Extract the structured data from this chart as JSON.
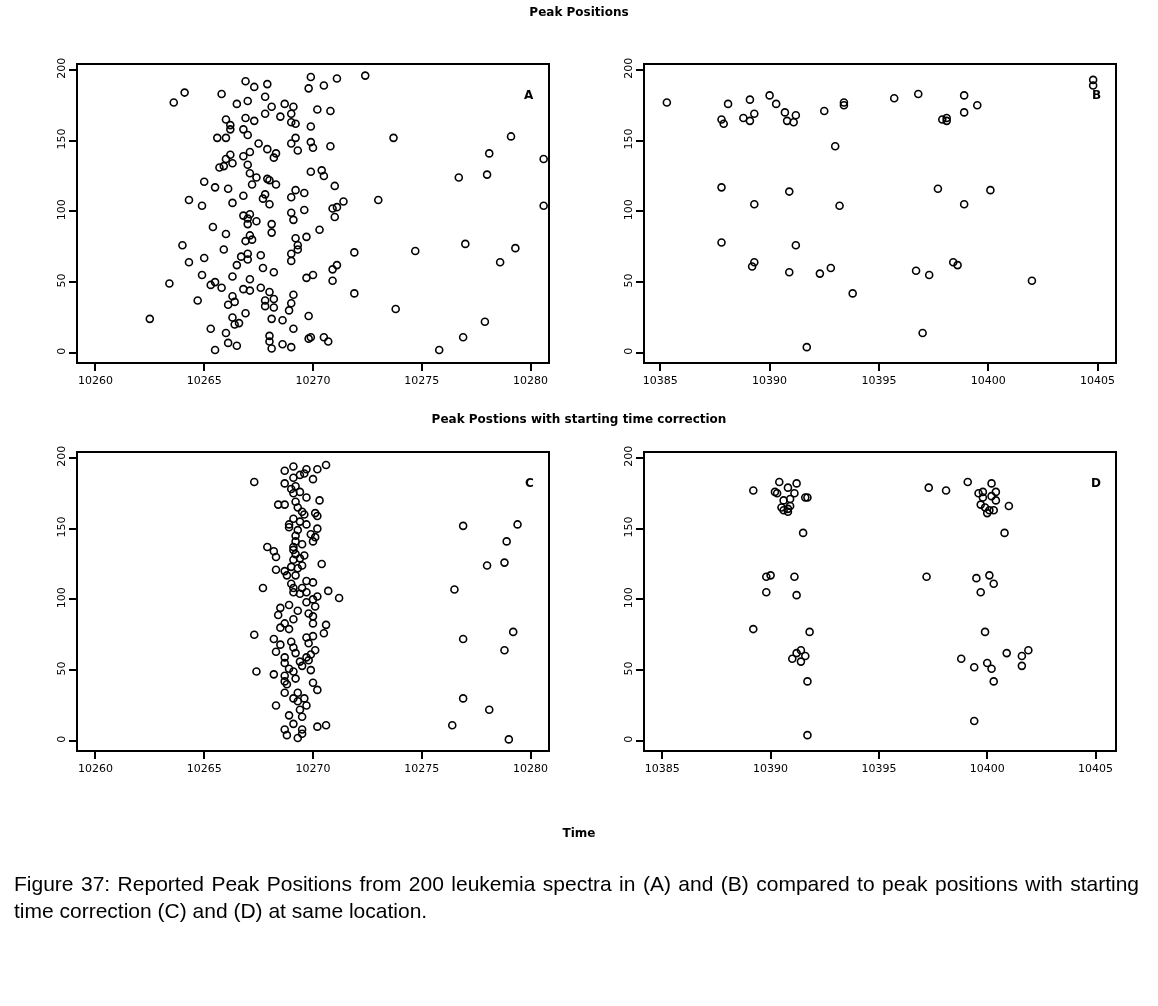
{
  "chart_data": [
    {
      "type": "scatter",
      "title": "Peak Positions",
      "annotations": [
        "A"
      ],
      "marker": "circle",
      "xlim": [
        10259.2,
        10280.8
      ],
      "ylim": [
        -6.5,
        203.5
      ],
      "xticks": [
        10260,
        10265,
        10270,
        10275,
        10280
      ],
      "yticks": [
        0,
        50,
        100,
        150,
        200
      ],
      "series": [
        {
          "color": "#000000",
          "x": [
            10263.6,
            10264.1,
            10265.8,
            10266.9,
            10267.3,
            10267.9,
            10267.8,
            10267.0,
            10266.5,
            10268.1,
            10268.7,
            10269.1,
            10269.0,
            10267.8,
            10268.5,
            10269.9,
            10269.8,
            10270.5,
            10271.1,
            10272.4,
            10270.2,
            10270.8,
            10266.0,
            10266.2,
            10266.9,
            10267.3,
            10269.0,
            10269.2,
            10269.9,
            10266.8,
            10267.0,
            10266.2,
            10265.6,
            10266.0,
            10269.2,
            10269.0,
            10269.3,
            10269.9,
            10270.0,
            10270.8,
            10267.5,
            10267.9,
            10268.3,
            10268.2,
            10267.1,
            10266.8,
            10266.2,
            10266.0,
            10266.3,
            10265.9,
            10265.7,
            10267.0,
            10267.1,
            10267.4,
            10267.2,
            10267.9,
            10268.0,
            10268.3,
            10269.9,
            10270.4,
            10270.5,
            10271.0,
            10265.0,
            10265.5,
            10266.1,
            10266.8,
            10267.8,
            10267.7,
            10268.0,
            10266.3,
            10264.3,
            10264.9,
            10269.2,
            10269.6,
            10269.0,
            10269.6,
            10269.0,
            10269.1,
            10270.9,
            10271.1,
            10271.4,
            10271.0,
            10273.0,
            10266.8,
            10267.1,
            10267.0,
            10267.0,
            10267.4,
            10268.1,
            10268.1,
            10265.4,
            10266.0,
            10267.1,
            10267.2,
            10266.9,
            10269.2,
            10269.7,
            10270.3,
            10269.3,
            10269.3,
            10269.0,
            10269.0,
            10264.0,
            10265.9,
            10265.0,
            10264.3,
            10267.0,
            10266.7,
            10267.0,
            10267.6,
            10266.5,
            10267.7,
            10268.2,
            10271.1,
            10270.9,
            10270.0,
            10269.7,
            10270.9,
            10271.9,
            10274.7,
            10277.0,
            10279.3,
            10278.6,
            10273.7,
            10279.1,
            10278.1,
            10278.0,
            10276.7,
            10280.6,
            10280.6,
            10263.4,
            10264.9,
            10265.3,
            10265.5,
            10265.8,
            10266.3,
            10267.1,
            10266.8,
            10267.1,
            10267.6,
            10268.0,
            10268.2,
            10267.8,
            10267.8,
            10268.2,
            10266.3,
            10266.4,
            10266.1,
            10264.7,
            10269.1,
            10269.0,
            10268.9,
            10266.9,
            10266.3,
            10266.4,
            10266.6,
            10268.1,
            10268.6,
            10269.1,
            10269.8,
            10271.9,
            10273.8,
            10277.9,
            10276.9,
            10275.8,
            10262.5,
            10265.3,
            10266.0,
            10266.1,
            10266.5,
            10265.5,
            10268.0,
            10268.0,
            10268.1,
            10268.6,
            10269.0,
            10269.8,
            10269.9,
            10270.5,
            10270.7
          ],
          "values": [
            177,
            184,
            183,
            192,
            188,
            190,
            181,
            178,
            176,
            174,
            176,
            174,
            169,
            169,
            167,
            195,
            187,
            189,
            194,
            196,
            172,
            171,
            165,
            161,
            166,
            164,
            163,
            162,
            160,
            158,
            154,
            158,
            152,
            152,
            152,
            148,
            143,
            149,
            145,
            146,
            148,
            144,
            141,
            138,
            142,
            139,
            140,
            137,
            134,
            132,
            131,
            133,
            127,
            124,
            119,
            123,
            122,
            119,
            128,
            129,
            125,
            118,
            121,
            117,
            116,
            111,
            112,
            109,
            105,
            106,
            108,
            104,
            115,
            113,
            110,
            101,
            99,
            94,
            102,
            103,
            107,
            96,
            108,
            97,
            98,
            95,
            91,
            93,
            91,
            85,
            89,
            84,
            83,
            80,
            79,
            81,
            82,
            87,
            76,
            73,
            70,
            65,
            76,
            73,
            67,
            64,
            70,
            68,
            66,
            69,
            62,
            60,
            57,
            62,
            59,
            55,
            53,
            51,
            71,
            72,
            77,
            74,
            64,
            152,
            153,
            141,
            126,
            124,
            137,
            104,
            49,
            55,
            48,
            50,
            46,
            54,
            52,
            45,
            44,
            46,
            43,
            38,
            37,
            33,
            32,
            40,
            36,
            34,
            37,
            41,
            35,
            30,
            28,
            25,
            20,
            21,
            24,
            23,
            17,
            26,
            42,
            31,
            22,
            11,
            2,
            24,
            17,
            14,
            7,
            5,
            2,
            12,
            8,
            3,
            6,
            4,
            10,
            11,
            11,
            8
          ]
        }
      ]
    },
    {
      "type": "scatter",
      "annotations": [
        "B"
      ],
      "marker": "circle",
      "xlim": [
        10384.3,
        10405.8
      ],
      "ylim": [
        -6.5,
        203.5
      ],
      "xticks": [
        10385,
        10390,
        10395,
        10400,
        10405
      ],
      "yticks": [
        0,
        50,
        100,
        150,
        200
      ],
      "series": [
        {
          "color": "#000000",
          "x": [
            10385.3,
            10387.8,
            10387.9,
            10388.1,
            10389.1,
            10389.3,
            10388.8,
            10389.1,
            10390.0,
            10390.3,
            10390.7,
            10390.8,
            10391.1,
            10391.2,
            10392.5,
            10393.4,
            10393.4,
            10393.0,
            10395.7,
            10396.8,
            10397.9,
            10398.1,
            10398.1,
            10398.9,
            10398.9,
            10399.5,
            10404.8,
            10404.8,
            10387.8,
            10389.3,
            10390.9,
            10393.2,
            10397.7,
            10398.9,
            10400.1,
            10387.8,
            10391.2,
            10389.2,
            10389.3,
            10390.9,
            10392.3,
            10392.8,
            10393.8,
            10391.7,
            10396.7,
            10397.3,
            10398.4,
            10398.6,
            10402.0,
            10397.0
          ],
          "values": [
            177,
            165,
            162,
            176,
            179,
            169,
            166,
            164,
            182,
            176,
            170,
            164,
            163,
            168,
            171,
            177,
            175,
            146,
            180,
            183,
            165,
            166,
            164,
            182,
            170,
            175,
            193,
            189,
            117,
            105,
            114,
            104,
            116,
            105,
            115,
            78,
            76,
            61,
            64,
            57,
            56,
            60,
            42,
            4,
            58,
            55,
            64,
            62,
            51,
            14
          ]
        }
      ]
    },
    {
      "type": "scatter",
      "title": "Peak Postions with starting time correction",
      "xlabel": "Time",
      "annotations": [
        "C",
        "Figure 37: Reported Peak Positions from 200 leukemia spectra in (A) and (B) compared to peak positions with starting time correction (C) and (D) at same location."
      ],
      "marker": "circle",
      "xlim": [
        10259.2,
        10280.8
      ],
      "ylim": [
        -6.5,
        203.5
      ],
      "xticks": [
        10260,
        10265,
        10270,
        10275,
        10280
      ],
      "yticks": [
        0,
        50,
        100,
        150,
        200
      ],
      "series": [
        {
          "color": "#000000",
          "x": [
            10267.3,
            10268.7,
            10269.1,
            10269.7,
            10269.6,
            10270.2,
            10270.6,
            10270.0,
            10268.7,
            10269.1,
            10269.4,
            10269.2,
            10269.0,
            10269.1,
            10269.4,
            10269.7,
            10270.3,
            10268.4,
            10268.7,
            10269.2,
            10269.3,
            10269.5,
            10269.6,
            10270.1,
            10270.2,
            10269.1,
            10269.4,
            10269.7,
            10268.9,
            10268.9,
            10269.3,
            10270.2,
            10269.9,
            10270.1,
            10270.0,
            10269.2,
            10269.2,
            10269.5,
            10269.1,
            10269.1,
            10267.9,
            10268.2,
            10268.3,
            10269.2,
            10269.6,
            10269.4,
            10269.1,
            10270.4,
            10269.5,
            10269.0,
            10269.3,
            10268.3,
            10268.7,
            10268.8,
            10269.2,
            10269.7,
            10270.0,
            10269.0,
            10269.1,
            10269.5,
            10267.7,
            10269.1,
            10269.4,
            10269.7,
            10270.2,
            10270.7,
            10271.2,
            10269.7,
            10270.0,
            10270.1,
            10268.9,
            10268.5,
            10269.3,
            10269.8,
            10270.0,
            10268.4,
            10269.1,
            10268.7,
            10270.0,
            10270.6,
            10268.5,
            10268.9,
            10267.3,
            10268.2,
            10270.5,
            10269.7,
            10270.0,
            10269.8,
            10268.5,
            10268.3,
            10269.0,
            10269.1,
            10269.2,
            10270.1,
            10269.9,
            10268.7,
            10269.7,
            10269.4,
            10269.8,
            10269.5,
            10269.9,
            10268.7,
            10268.9,
            10269.1,
            10267.4,
            10268.2,
            10268.7,
            10269.2,
            10268.7,
            10268.8,
            10270.0,
            10270.2,
            10268.7,
            10269.3,
            10269.6,
            10269.1,
            10269.3,
            10269.7,
            10269.4,
            10268.3,
            10268.9,
            10269.5,
            10269.1,
            10268.7,
            10269.5,
            10268.8,
            10269.3,
            10269.5,
            10270.2,
            10270.6,
            10276.9,
            10279.4,
            10278.9,
            10278.8,
            10278.0,
            10276.5,
            10276.9,
            10279.2,
            10278.8,
            10276.9,
            10278.1,
            10276.4,
            10279.0
          ],
          "values": [
            183,
            191,
            194,
            192,
            189,
            192,
            195,
            185,
            182,
            186,
            188,
            180,
            178,
            175,
            176,
            172,
            170,
            167,
            167,
            169,
            165,
            162,
            160,
            161,
            159,
            157,
            155,
            153,
            153,
            151,
            149,
            150,
            146,
            144,
            141,
            145,
            141,
            139,
            137,
            135,
            137,
            134,
            130,
            132,
            131,
            129,
            128,
            125,
            124,
            123,
            122,
            121,
            120,
            117,
            117,
            113,
            112,
            111,
            108,
            108,
            108,
            105,
            104,
            105,
            102,
            106,
            101,
            98,
            100,
            95,
            96,
            94,
            92,
            90,
            88,
            89,
            86,
            83,
            83,
            82,
            80,
            79,
            75,
            72,
            76,
            73,
            74,
            69,
            68,
            63,
            70,
            66,
            62,
            64,
            61,
            59,
            59,
            56,
            57,
            53,
            50,
            55,
            51,
            49,
            49,
            47,
            46,
            44,
            42,
            40,
            41,
            36,
            34,
            34,
            30,
            30,
            28,
            25,
            22,
            25,
            18,
            17,
            12,
            8,
            8,
            4,
            2,
            5,
            10,
            11,
            152,
            153,
            141,
            126,
            124,
            107,
            72,
            77,
            64,
            30,
            22,
            11,
            1
          ]
        }
      ]
    },
    {
      "type": "scatter",
      "annotations": [
        "D"
      ],
      "marker": "circle",
      "xlim": [
        10384.2,
        10405.9
      ],
      "ylim": [
        -6.5,
        203.5
      ],
      "xticks": [
        10385,
        10390,
        10395,
        10400,
        10405
      ],
      "yticks": [
        0,
        50,
        100,
        150,
        200
      ],
      "series": [
        {
          "color": "#000000",
          "x": [
            10389.2,
            10390.4,
            10390.8,
            10391.2,
            10390.2,
            10390.3,
            10391.1,
            10390.6,
            10390.9,
            10391.6,
            10391.7,
            10390.5,
            10390.6,
            10390.8,
            10390.8,
            10390.9,
            10391.5,
            10389.8,
            10390.0,
            10391.1,
            10389.8,
            10391.2,
            10389.2,
            10391.8,
            10391.4,
            10391.2,
            10391.6,
            10391.0,
            10391.4,
            10391.7,
            10391.7,
            10397.3,
            10398.1,
            10399.1,
            10400.2,
            10399.6,
            10399.8,
            10400.4,
            10400.2,
            10399.8,
            10400.4,
            10399.7,
            10399.9,
            10400.1,
            10400.3,
            10400.0,
            10401.0,
            10400.8,
            10397.2,
            10399.5,
            10400.1,
            10400.3,
            10399.7,
            10399.9,
            10398.8,
            10399.4,
            10400.0,
            10400.2,
            10400.9,
            10401.6,
            10401.6,
            10401.9,
            10400.3,
            10399.4
          ],
          "values": [
            177,
            183,
            179,
            182,
            176,
            175,
            175,
            170,
            171,
            172,
            172,
            165,
            163,
            164,
            162,
            166,
            147,
            116,
            117,
            116,
            105,
            103,
            79,
            77,
            64,
            62,
            60,
            58,
            56,
            42,
            4,
            179,
            177,
            183,
            182,
            175,
            176,
            176,
            173,
            172,
            170,
            167,
            165,
            163,
            163,
            161,
            166,
            147,
            116,
            115,
            117,
            111,
            105,
            77,
            58,
            52,
            55,
            51,
            62,
            53,
            60,
            64,
            42,
            14
          ]
        }
      ]
    }
  ]
}
